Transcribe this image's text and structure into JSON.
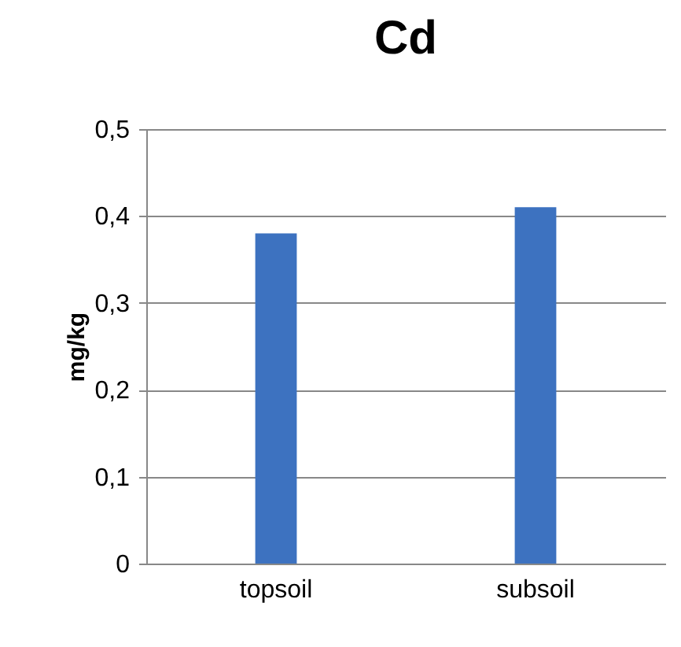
{
  "chart_data": {
    "type": "bar",
    "title": "Cd",
    "ylabel": "mg/kg",
    "categories": [
      "topsoil",
      "subsoil"
    ],
    "values": [
      0.38,
      0.41
    ],
    "color": "#3d72c0",
    "ylim": [
      0,
      0.5
    ],
    "yticks": [
      0,
      {
        "value": 0.1,
        "label": "0,1"
      },
      {
        "value": 0.2,
        "label": "0,2"
      },
      {
        "value": 0.3,
        "label": "0,3"
      },
      {
        "value": 0.4,
        "label": "0,4"
      },
      {
        "value": 0.5,
        "label": "0,5"
      }
    ],
    "grid": "y"
  }
}
